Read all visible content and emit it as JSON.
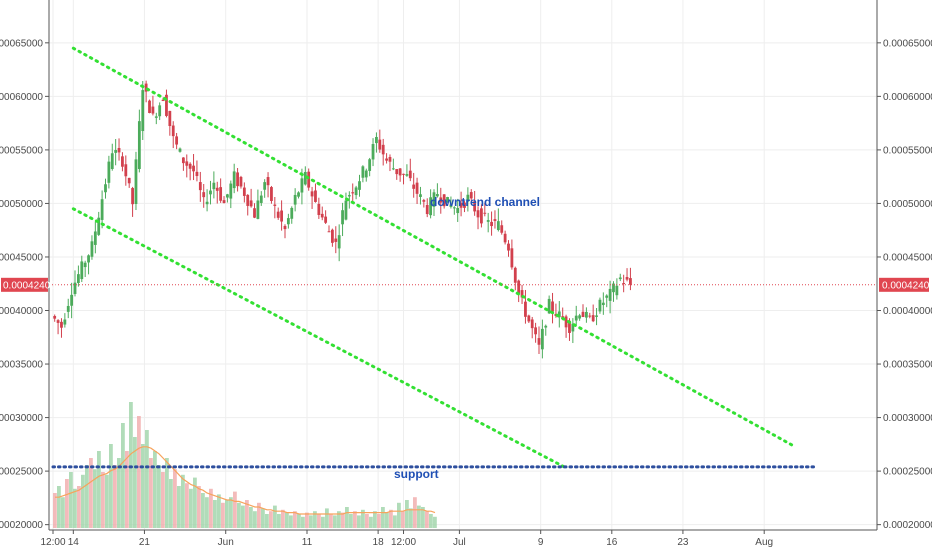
{
  "chart_data": {
    "type": "candlestick",
    "price_scale": {
      "min": 0.000195,
      "max": 0.00069,
      "ticks": [
        "0.00020000",
        "0.00025000",
        "0.00030000",
        "0.00035000",
        "0.00040000",
        "0.00045000",
        "0.00050000",
        "0.00055000",
        "0.00060000",
        "0.00065000"
      ],
      "tick_values": [
        0.0002,
        0.00025,
        0.0003,
        0.00035,
        0.0004,
        0.00045,
        0.0005,
        0.00055,
        0.0006,
        0.00065
      ]
    },
    "x_axis": {
      "labels": [
        "12:00",
        "14",
        "21",
        "Jun",
        "11",
        "18",
        "12:00",
        "Jul",
        "9",
        "16",
        "23",
        "Aug"
      ],
      "label_days": [
        0,
        2,
        9,
        17,
        25,
        32,
        34.5,
        40,
        48,
        55,
        62,
        70
      ],
      "domain": [
        0,
        76
      ]
    },
    "current_price": {
      "label": "0.00042400",
      "value": 0.000424,
      "color": "#e04650"
    },
    "annotations": {
      "channel_label": "downtrend channel",
      "support_label": "support"
    },
    "channel_upper": [
      [
        2.0,
        0.000645
      ],
      [
        73.0,
        0.000273
      ]
    ],
    "channel_lower": [
      [
        2.0,
        0.000495
      ],
      [
        50.5,
        0.000253
      ]
    ],
    "support_line": {
      "value": 0.000254,
      "from_day": 0,
      "to_day": 75
    },
    "candle_up_color": "#4cab5b",
    "candle_down_color": "#d2404d",
    "ohlc_path": [
      [
        0,
        0.000395
      ],
      [
        1,
        0.000385
      ],
      [
        2,
        0.00042
      ],
      [
        3,
        0.00044
      ],
      [
        4,
        0.00046
      ],
      [
        5,
        0.000505
      ],
      [
        6,
        0.00055
      ],
      [
        7,
        0.00054
      ],
      [
        8,
        0.0005
      ],
      [
        9,
        0.00061
      ],
      [
        10,
        0.00058
      ],
      [
        11,
        0.0006
      ],
      [
        12,
        0.00056
      ],
      [
        13,
        0.00054
      ],
      [
        14,
        0.00053
      ],
      [
        15,
        0.0005
      ],
      [
        16,
        0.00052
      ],
      [
        17,
        0.0005
      ],
      [
        18,
        0.000525
      ],
      [
        19,
        0.00051
      ],
      [
        20,
        0.00049
      ],
      [
        21,
        0.00052
      ],
      [
        22,
        0.000495
      ],
      [
        23,
        0.000475
      ],
      [
        24,
        0.000505
      ],
      [
        25,
        0.000525
      ],
      [
        26,
        0.0005
      ],
      [
        27,
        0.00048
      ],
      [
        28,
        0.000462
      ],
      [
        29,
        0.000505
      ],
      [
        30,
        0.000518
      ],
      [
        31,
        0.000535
      ],
      [
        32,
        0.00056
      ],
      [
        33,
        0.00054
      ],
      [
        34,
        0.00053
      ],
      [
        35,
        0.000525
      ],
      [
        36,
        0.00051
      ],
      [
        37,
        0.000495
      ],
      [
        38,
        0.00051
      ],
      [
        39,
        0.0005
      ],
      [
        40,
        0.000495
      ],
      [
        41,
        0.000505
      ],
      [
        42,
        0.00049
      ],
      [
        43,
        0.000482
      ],
      [
        44,
        0.00048
      ],
      [
        45,
        0.00046
      ],
      [
        46,
        0.000415
      ],
      [
        47,
        0.00039
      ],
      [
        48,
        0.000365
      ],
      [
        49,
        0.000405
      ],
      [
        50,
        0.000395
      ],
      [
        51,
        0.000385
      ],
      [
        52,
        0.0004
      ],
      [
        53,
        0.00039
      ],
      [
        54,
        0.000405
      ],
      [
        55,
        0.000415
      ],
      [
        56,
        0.00043
      ],
      [
        57,
        0.000424
      ]
    ],
    "volume": {
      "bars": [
        0.25,
        0.3,
        0.22,
        0.35,
        0.4,
        0.28,
        0.3,
        0.38,
        0.45,
        0.5,
        0.42,
        0.55,
        0.4,
        0.38,
        0.6,
        0.45,
        0.5,
        0.75,
        0.55,
        0.9,
        0.65,
        0.8,
        0.6,
        0.7,
        0.5,
        0.55,
        0.45,
        0.4,
        0.5,
        0.35,
        0.42,
        0.3,
        0.38,
        0.32,
        0.28,
        0.36,
        0.3,
        0.25,
        0.22,
        0.28,
        0.2,
        0.24,
        0.18,
        0.2,
        0.22,
        0.26,
        0.18,
        0.16,
        0.2,
        0.15,
        0.12,
        0.18,
        0.14,
        0.1,
        0.12,
        0.16,
        0.1,
        0.13,
        0.11,
        0.09,
        0.12,
        0.1,
        0.08,
        0.11,
        0.09,
        0.12,
        0.1,
        0.08,
        0.14,
        0.1,
        0.09,
        0.12,
        0.11,
        0.15,
        0.1,
        0.12,
        0.09,
        0.13,
        0.1,
        0.08,
        0.12,
        0.1,
        0.15,
        0.11,
        0.13,
        0.09,
        0.18,
        0.12,
        0.2,
        0.14,
        0.22,
        0.16,
        0.15,
        0.12,
        0.1,
        0.08
      ],
      "ma": [
        0.22,
        0.22,
        0.23,
        0.24,
        0.25,
        0.26,
        0.27,
        0.29,
        0.31,
        0.33,
        0.35,
        0.37,
        0.38,
        0.39,
        0.41,
        0.42,
        0.44,
        0.47,
        0.5,
        0.53,
        0.55,
        0.57,
        0.58,
        0.58,
        0.57,
        0.55,
        0.53,
        0.5,
        0.47,
        0.44,
        0.41,
        0.38,
        0.35,
        0.33,
        0.31,
        0.3,
        0.28,
        0.27,
        0.25,
        0.24,
        0.23,
        0.22,
        0.21,
        0.2,
        0.2,
        0.19,
        0.19,
        0.18,
        0.17,
        0.16,
        0.15,
        0.15,
        0.14,
        0.13,
        0.13,
        0.12,
        0.12,
        0.12,
        0.11,
        0.11,
        0.11,
        0.1,
        0.1,
        0.1,
        0.1,
        0.1,
        0.1,
        0.1,
        0.1,
        0.1,
        0.1,
        0.1,
        0.1,
        0.11,
        0.11,
        0.11,
        0.11,
        0.11,
        0.11,
        0.11,
        0.11,
        0.11,
        0.11,
        0.11,
        0.12,
        0.12,
        0.12,
        0.12,
        0.13,
        0.13,
        0.13,
        0.13,
        0.13,
        0.12,
        0.12,
        0.11
      ],
      "up_color": "#9ed3a8",
      "down_color": "#f0aaaa",
      "ma_color": "#f7a35c"
    }
  }
}
